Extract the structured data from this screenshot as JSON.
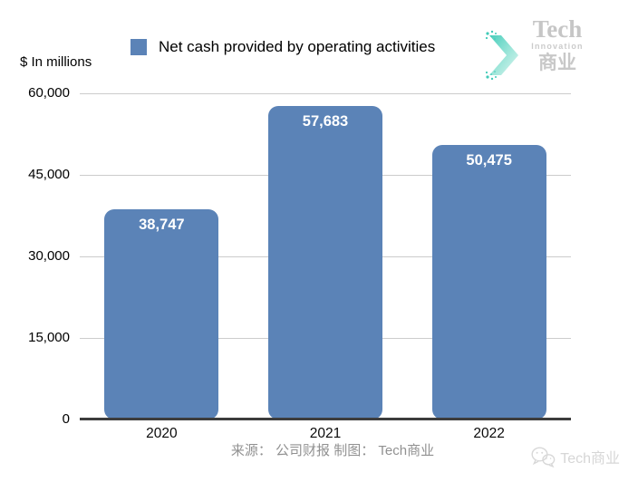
{
  "units_label": "$ In millions",
  "legend": {
    "label": "Net cash provided by operating activities",
    "swatch_color": "#5b83b7"
  },
  "logo": {
    "title": "Tech",
    "subtitle": "Innovation",
    "cjk": "商业",
    "accent_color": "#45cdbb"
  },
  "chart_data": {
    "type": "bar",
    "title": "Net cash provided by operating activities",
    "categories": [
      "2020",
      "2021",
      "2022"
    ],
    "values": [
      38747,
      57683,
      50475
    ],
    "value_labels": [
      "38,747",
      "57,683",
      "50,475"
    ],
    "xlabel": "",
    "ylabel": "$ In millions",
    "ylim": [
      0,
      60000
    ],
    "yticks": [
      0,
      15000,
      30000,
      45000,
      60000
    ],
    "ytick_labels": [
      "0",
      "15,000",
      "30,000",
      "45,000",
      "60,000"
    ],
    "grid": true,
    "legend_position": "top",
    "bar_color": "#5b83b7",
    "gridline_color": "#cccccc",
    "axis_line_color": "#3d3d3d"
  },
  "footer": {
    "source": "来源： 公司财报 制图： Tech商业"
  },
  "watermark": {
    "text": "Tech商业"
  }
}
